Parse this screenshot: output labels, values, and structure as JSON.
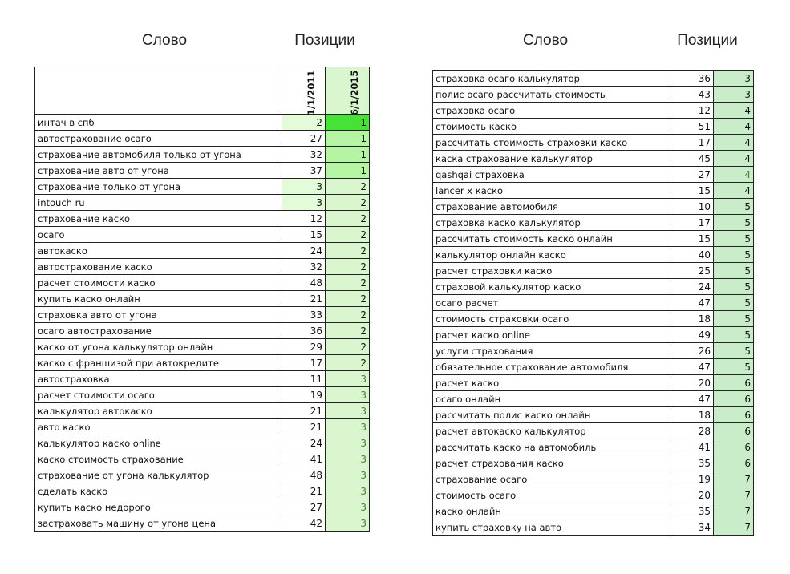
{
  "headers": {
    "left_word": "Слово",
    "left_pos": "Позиции",
    "right_word": "Слово",
    "right_pos": "Позиции"
  },
  "left_table": {
    "columns": [
      "1/1/2011",
      "6/1/2015"
    ],
    "rows": [
      [
        "интач в спб",
        2,
        1
      ],
      [
        "автострахование осаго",
        27,
        1
      ],
      [
        "страхование автомобиля только от угона",
        32,
        1
      ],
      [
        "страхование авто от угона",
        37,
        1
      ],
      [
        "страхование только от угона",
        3,
        2
      ],
      [
        "intouch ru",
        3,
        2
      ],
      [
        "страхование каско",
        12,
        2
      ],
      [
        "осаго",
        15,
        2
      ],
      [
        "автокаско",
        24,
        2
      ],
      [
        "автострахование каско",
        32,
        2
      ],
      [
        "расчет стоимости каско",
        48,
        2
      ],
      [
        "купить каско онлайн",
        21,
        2
      ],
      [
        "страховка авто от угона",
        33,
        2
      ],
      [
        "осаго автострахование",
        36,
        2
      ],
      [
        "каско от угона калькулятор онлайн",
        29,
        2
      ],
      [
        "каско с франшизой при автокредите",
        17,
        2
      ],
      [
        "автостраховка",
        11,
        3
      ],
      [
        "расчет стоимости осаго",
        19,
        3
      ],
      [
        "калькулятор автокаско",
        21,
        3
      ],
      [
        "авто каско",
        21,
        3
      ],
      [
        "калькулятор каско online",
        24,
        3
      ],
      [
        "каско стоимость страхование",
        41,
        3
      ],
      [
        "страхование от угона калькулятор",
        48,
        3
      ],
      [
        "сделать каско",
        21,
        3
      ],
      [
        "купить каско недорого",
        27,
        3
      ],
      [
        "застраховать машину от угона цена",
        42,
        3
      ]
    ]
  },
  "right_table": {
    "rows": [
      [
        "страховка осаго калькулятор",
        36,
        3
      ],
      [
        "полис осаго рассчитать стоимость",
        43,
        3
      ],
      [
        "страховка осаго",
        12,
        4
      ],
      [
        "стоимость каско",
        51,
        4
      ],
      [
        "рассчитать стоимость страховки каско",
        17,
        4
      ],
      [
        "каска страхование калькулятор",
        45,
        4
      ],
      [
        "qashqai страховка",
        27,
        4
      ],
      [
        "lancer x каско",
        15,
        4
      ],
      [
        "страхование автомобиля",
        10,
        5
      ],
      [
        "страховка каско калькулятор",
        17,
        5
      ],
      [
        "рассчитать стоимость каско онлайн",
        15,
        5
      ],
      [
        "калькулятор онлайн каско",
        40,
        5
      ],
      [
        "расчет страховки каско",
        25,
        5
      ],
      [
        "страховой калькулятор каско",
        24,
        5
      ],
      [
        "осаго расчет",
        47,
        5
      ],
      [
        "стоимость страховки осаго",
        18,
        5
      ],
      [
        "расчет каско online",
        49,
        5
      ],
      [
        "услуги страхования",
        26,
        5
      ],
      [
        "обязательное страхование автомобиля",
        47,
        5
      ],
      [
        "расчет каско",
        20,
        6
      ],
      [
        "осаго онлайн",
        47,
        6
      ],
      [
        "рассчитать полис каско онлайн",
        18,
        6
      ],
      [
        "расчет автокаско калькулятор",
        28,
        6
      ],
      [
        "рассчитать каско на автомобиль",
        41,
        6
      ],
      [
        "расчет страхования каско",
        35,
        6
      ],
      [
        "страхование осаго",
        19,
        7
      ],
      [
        "стоимость осаго",
        20,
        7
      ],
      [
        "каско онлайн",
        35,
        7
      ],
      [
        "купить страховку на авто",
        34,
        7
      ]
    ]
  },
  "colors": {
    "top1": "#46e236",
    "pos1": "#b4f4a2",
    "pos_other": "#d9f6cf",
    "left_low": "#e3fbd9",
    "right_pos": "#c9edc9",
    "faded_text": "#4c7a3c"
  }
}
